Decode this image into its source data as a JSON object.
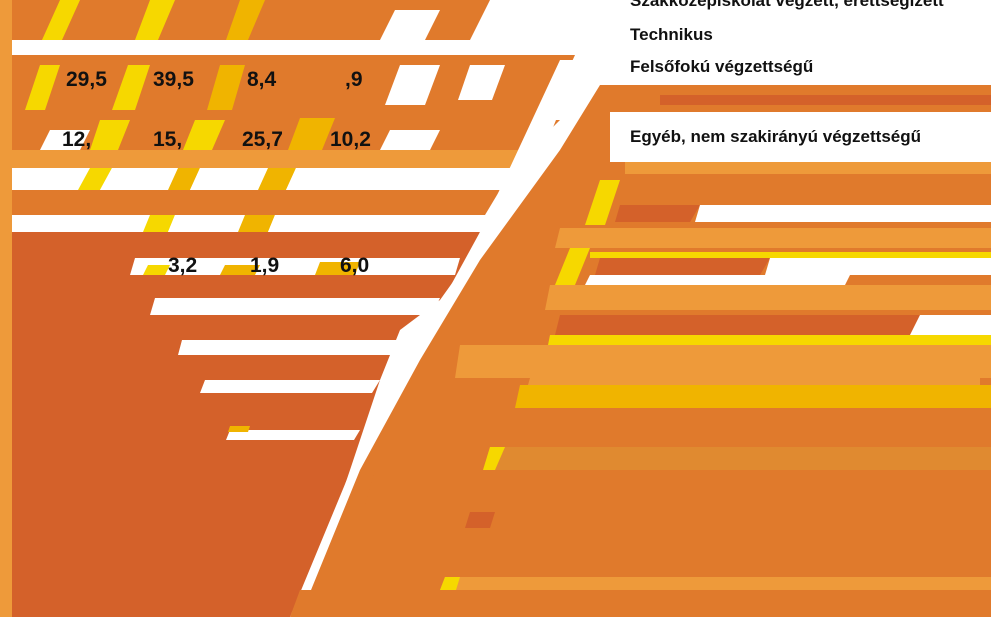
{
  "palette": {
    "orange": "#e07a2c",
    "dark_orange": "#d4612a",
    "light_orange": "#ee9a3a",
    "yellow": "#f6d800",
    "gold": "#f0b400",
    "white": "#ffffff"
  },
  "table": {
    "rows": [
      [
        "29,5",
        "39,5",
        "8,4",
        ",9"
      ],
      [
        "12,",
        "15,",
        "25,7",
        "10,2"
      ],
      [
        "3,2",
        "1,9",
        "6,0"
      ]
    ]
  },
  "legend": {
    "items": [
      "Szakközépiskolát végzett, érettségizett",
      "Technikus",
      "Felsőfokú végzettségű",
      "Egyéb, nem szakirányú végzettségű"
    ]
  }
}
